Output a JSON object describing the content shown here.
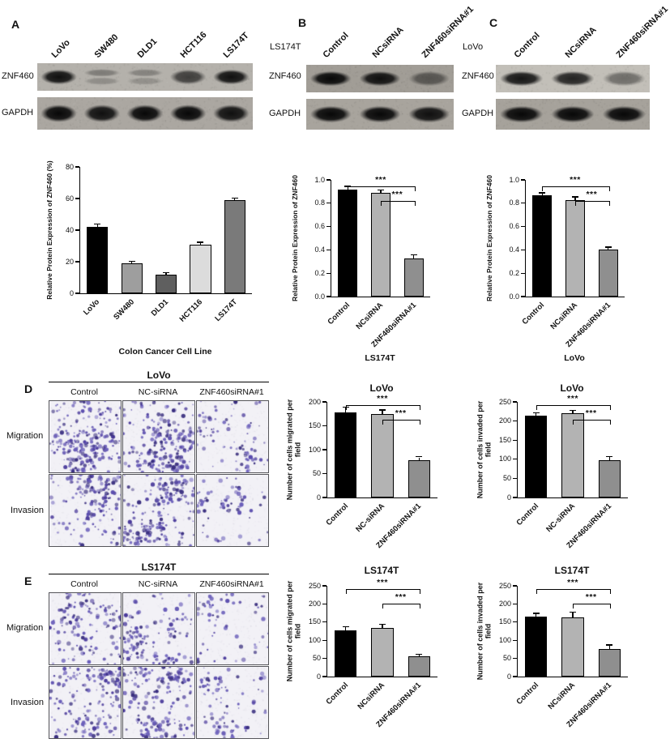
{
  "panels": {
    "A": {
      "label": "A",
      "blot": {
        "lanes": [
          "LoVo",
          "SW480",
          "DLD1",
          "HCT116",
          "LS174T"
        ],
        "rows": [
          {
            "label": "ZNF460",
            "bands": [
              [
                0.95
              ],
              [
                0.32,
                0.22
              ],
              [
                0.28,
                0.2
              ],
              [
                0.68
              ],
              [
                0.95
              ]
            ]
          },
          {
            "label": "GAPDH",
            "bands": [
              [
                1
              ],
              [
                0.95
              ],
              [
                1
              ],
              [
                1
              ],
              [
                0.95
              ]
            ]
          }
        ]
      }
    },
    "B": {
      "label": "B",
      "cell_line": "LS174T",
      "blot": {
        "lanes": [
          "Control",
          "NCsiRNA",
          "ZNF460siRNA#1"
        ],
        "rows": [
          {
            "label": "ZNF460",
            "bands": [
              [
                1
              ],
              [
                0.95
              ],
              [
                0.5
              ]
            ]
          },
          {
            "label": "GAPDH",
            "bands": [
              [
                1
              ],
              [
                1
              ],
              [
                0.95
              ]
            ]
          }
        ]
      }
    },
    "C": {
      "label": "C",
      "cell_line": "LoVo",
      "blot": {
        "lanes": [
          "Control",
          "NCsiRNA",
          "ZNF460siRNA#1"
        ],
        "rows": [
          {
            "label": "ZNF460",
            "bands": [
              [
                0.92
              ],
              [
                0.85
              ],
              [
                0.45
              ]
            ]
          },
          {
            "label": "GAPDH",
            "bands": [
              [
                1
              ],
              [
                1
              ],
              [
                1
              ]
            ]
          }
        ]
      }
    },
    "D": {
      "label": "D",
      "cell_line": "LoVo",
      "columns": [
        "Control",
        "NC-siRNA",
        "ZNF460siRNA#1"
      ],
      "assays": [
        {
          "label": "Migration",
          "dots": [
            235,
            215,
            85
          ]
        },
        {
          "label": "Invasion",
          "dots": [
            170,
            200,
            80
          ]
        }
      ]
    },
    "E": {
      "label": "E",
      "cell_line": "LS174T",
      "columns": [
        "Control",
        "NC-siRNA",
        "ZNF460siRNA#1"
      ],
      "assays": [
        {
          "label": "Migration",
          "dots": [
            150,
            160,
            62
          ]
        },
        {
          "label": "Invasion",
          "dots": [
            185,
            195,
            88
          ]
        }
      ]
    }
  },
  "colors": {
    "bar_black": "#000000",
    "bar_gray_light": "#b3b3b3",
    "bar_gray_mid": "#8f8f8f",
    "stain_purple": "#4a3a9b"
  },
  "chart_data": [
    {
      "id": "panel_a_expression",
      "type": "bar",
      "title": "",
      "categories": [
        "LoVo",
        "SW480",
        "DLD1",
        "HCT116",
        "LS174T"
      ],
      "values": [
        42,
        19,
        12,
        31,
        59
      ],
      "errors": [
        1.5,
        1,
        1,
        1,
        1
      ],
      "bar_colors": [
        "#000000",
        "#9e9e9e",
        "#5f5f5f",
        "#dcdcdc",
        "#7a7a7a"
      ],
      "ylabel": "Relative Protein Expression of ZNF460 (%)",
      "xlabel": "Colon Cancer Cell Line",
      "ylim": [
        0,
        80
      ],
      "yticks": [
        0,
        20,
        40,
        60,
        80
      ],
      "grid": false,
      "significance": []
    },
    {
      "id": "panel_b_expression",
      "type": "bar",
      "title": "",
      "categories": [
        "Control",
        "NCsiRNA",
        "ZNF460siRNA#1"
      ],
      "values": [
        0.92,
        0.89,
        0.33
      ],
      "errors": [
        0.02,
        0.02,
        0.025
      ],
      "bar_colors": [
        "#000000",
        "#b3b3b3",
        "#8f8f8f"
      ],
      "ylabel": "Relative Protein Expression of ZNF460",
      "xlabel": "LS174T",
      "ylim": [
        0,
        1.0
      ],
      "yticks": [
        0,
        0.2,
        0.4,
        0.6,
        0.8,
        1.0
      ],
      "grid": false,
      "significance": [
        {
          "from": 0,
          "to": 2,
          "label": "***"
        },
        {
          "from": 1,
          "to": 2,
          "label": "***"
        }
      ]
    },
    {
      "id": "panel_c_expression",
      "type": "bar",
      "title": "",
      "categories": [
        "Control",
        "NCsiRNA",
        "ZNF460siRNA#1"
      ],
      "values": [
        0.87,
        0.83,
        0.4
      ],
      "errors": [
        0.015,
        0.02,
        0.02
      ],
      "bar_colors": [
        "#000000",
        "#b3b3b3",
        "#8f8f8f"
      ],
      "ylabel": "Relative Protein Expression of ZNF460",
      "xlabel": "LoVo",
      "ylim": [
        0,
        1.0
      ],
      "yticks": [
        0,
        0.2,
        0.4,
        0.6,
        0.8,
        1.0
      ],
      "grid": false,
      "significance": [
        {
          "from": 0,
          "to": 2,
          "label": "***"
        },
        {
          "from": 1,
          "to": 2,
          "label": "***"
        }
      ]
    },
    {
      "id": "panel_d_migration",
      "type": "bar",
      "title": "LoVo",
      "categories": [
        "Control",
        "NC-siRNA",
        "ZNF460siRNA#1"
      ],
      "values": [
        178,
        174,
        78
      ],
      "errors": [
        10,
        8,
        6
      ],
      "bar_colors": [
        "#000000",
        "#b3b3b3",
        "#8f8f8f"
      ],
      "ylabel": "Number of cells migrated per field",
      "xlabel": "",
      "ylim": [
        0,
        200
      ],
      "yticks": [
        0,
        50,
        100,
        150,
        200
      ],
      "grid": false,
      "significance": [
        {
          "from": 0,
          "to": 2,
          "label": "***"
        },
        {
          "from": 1,
          "to": 2,
          "label": "***"
        }
      ]
    },
    {
      "id": "panel_d_invasion",
      "type": "bar",
      "title": "LoVo",
      "categories": [
        "Control",
        "NC-siRNA",
        "ZNF460siRNA#1"
      ],
      "values": [
        214,
        220,
        97
      ],
      "errors": [
        6,
        6,
        8
      ],
      "bar_colors": [
        "#000000",
        "#b3b3b3",
        "#8f8f8f"
      ],
      "ylabel": "Number of cells invaded per field",
      "xlabel": "",
      "ylim": [
        0,
        250
      ],
      "yticks": [
        0,
        50,
        100,
        150,
        200,
        250
      ],
      "grid": false,
      "significance": [
        {
          "from": 0,
          "to": 2,
          "label": "***"
        },
        {
          "from": 1,
          "to": 2,
          "label": "***"
        }
      ]
    },
    {
      "id": "panel_e_migration",
      "type": "bar",
      "title": "LS174T",
      "categories": [
        "Control",
        "NCsiRNA",
        "ZNF460siRNA#1"
      ],
      "values": [
        128,
        133,
        55
      ],
      "errors": [
        8,
        9,
        6
      ],
      "bar_colors": [
        "#000000",
        "#b3b3b3",
        "#8f8f8f"
      ],
      "ylabel": "Number of cells migrated per field",
      "xlabel": "",
      "ylim": [
        0,
        250
      ],
      "yticks": [
        0,
        50,
        100,
        150,
        200,
        250
      ],
      "grid": false,
      "significance": [
        {
          "from": 0,
          "to": 2,
          "label": "***"
        },
        {
          "from": 1,
          "to": 2,
          "label": "***"
        }
      ]
    },
    {
      "id": "panel_e_invasion",
      "type": "bar",
      "title": "LS174T",
      "categories": [
        "Control",
        "NCsiRNA",
        "ZNF460siRNA#1"
      ],
      "values": [
        165,
        162,
        77
      ],
      "errors": [
        8,
        14,
        9
      ],
      "bar_colors": [
        "#000000",
        "#b3b3b3",
        "#8f8f8f"
      ],
      "ylabel": "Number of cells invaded per field",
      "xlabel": "",
      "ylim": [
        0,
        250
      ],
      "yticks": [
        0,
        50,
        100,
        150,
        200,
        250
      ],
      "grid": false,
      "significance": [
        {
          "from": 0,
          "to": 2,
          "label": "***"
        },
        {
          "from": 1,
          "to": 2,
          "label": "***"
        }
      ]
    }
  ]
}
